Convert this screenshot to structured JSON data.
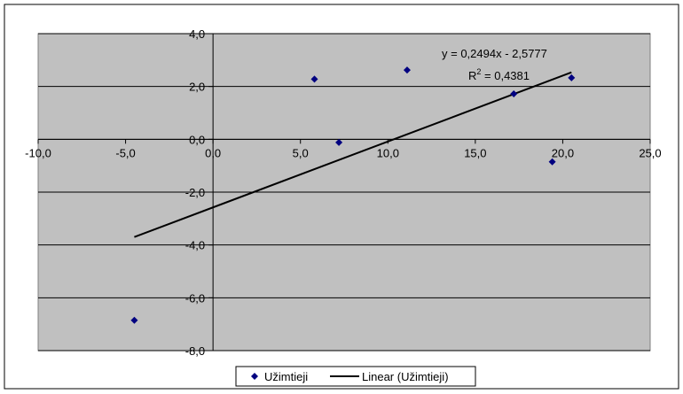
{
  "chart_data": {
    "type": "scatter",
    "title": "",
    "xlabel": "",
    "ylabel": "",
    "xlim": [
      -10,
      25
    ],
    "ylim": [
      -8,
      4
    ],
    "x_ticks": [
      -10,
      -5,
      0,
      5,
      10,
      15,
      20,
      25
    ],
    "y_ticks": [
      -8,
      -6,
      -4,
      -2,
      0,
      2,
      4
    ],
    "x_tick_labels": [
      "-10,0",
      "-5,0",
      "0,0",
      "5,0",
      "10,0",
      "15,0",
      "20,0",
      "25,0"
    ],
    "y_tick_labels": [
      "-8,0",
      "-6,0",
      "-4,0",
      "-2,0",
      "0,0",
      "2,0",
      "4,0"
    ],
    "grid": "horizontal",
    "plot_background": "#c0c0c0",
    "series": [
      {
        "name": "Užimtieji",
        "marker": "diamond",
        "color": "#000080",
        "points": [
          {
            "x": -4.5,
            "y": -6.85
          },
          {
            "x": 5.8,
            "y": 2.28
          },
          {
            "x": 7.2,
            "y": -0.12
          },
          {
            "x": 11.1,
            "y": 2.62
          },
          {
            "x": 17.2,
            "y": 1.72
          },
          {
            "x": 19.4,
            "y": -0.85
          },
          {
            "x": 20.5,
            "y": 2.33
          }
        ]
      },
      {
        "name": "Linear (Užimtieji)",
        "type": "line",
        "color": "#000000",
        "slope": 0.2494,
        "intercept": -2.5777,
        "x_range": [
          -4.5,
          20.5
        ]
      }
    ],
    "annotations": {
      "equation": "y = 0,2494x - 2,5777",
      "r_squared_prefix": "R",
      "r_squared_sup": "2",
      "r_squared_value": " = 0,4381"
    },
    "legend": {
      "placement": "bottom-center",
      "entries": [
        "Užimtieji",
        "Linear (Užimtieji)"
      ]
    }
  }
}
